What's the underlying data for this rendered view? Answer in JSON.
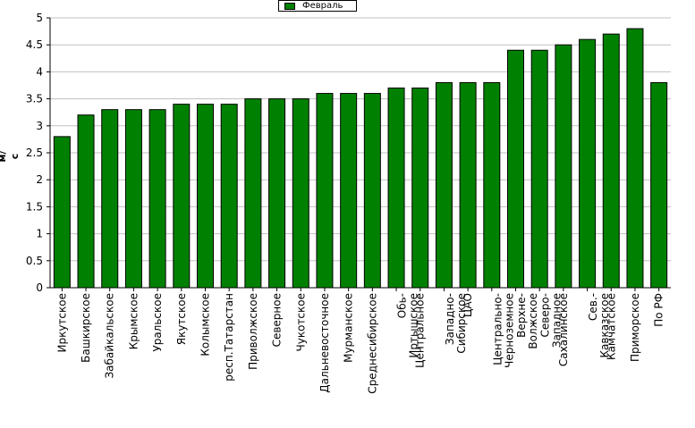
{
  "chart_data": {
    "type": "bar",
    "legend": "Февраль",
    "legend_position": "top-center",
    "ylabel": "м/с",
    "ylim": [
      0,
      5
    ],
    "yticks": [
      "0",
      "0.5",
      "1",
      "1.5",
      "2",
      "2.5",
      "3",
      "3.5",
      "4",
      "4.5",
      "5"
    ],
    "grid": true,
    "colors": {
      "bar": "#008000",
      "grid": "#c0c0c0",
      "plot_bg": "#ffffff"
    },
    "categories": [
      "Иркутское",
      "Башкирское",
      "Забайкальское",
      "Крымское",
      "Уральское",
      "Якутское",
      "Колымское",
      "респ.Татарстан",
      "Приволжское",
      "Северное",
      "Чукотское",
      "Дальневосточное",
      "Мурманское",
      "Среднесибирское",
      "Обь-Иртышское",
      "Центральное",
      "Западно-Сибирское",
      "ЦАО",
      "Центрально-Черноземное",
      "Верхне-Волжское",
      "Северо-Западное",
      "Сахалинское",
      "Сев.-Кавказское",
      "Камчатское",
      "Приморское",
      "По РФ"
    ],
    "category_lines": [
      [
        "Иркутское"
      ],
      [
        "Башкирское"
      ],
      [
        "Забайкальское"
      ],
      [
        "Крымское"
      ],
      [
        "Уральское"
      ],
      [
        "Якутское"
      ],
      [
        "Колымское"
      ],
      [
        "респ.Татарстан"
      ],
      [
        "Приволжское"
      ],
      [
        "Северное"
      ],
      [
        "Чукотское"
      ],
      [
        "Дальневосточное"
      ],
      [
        "Мурманское"
      ],
      [
        "Среднесибирское"
      ],
      [
        "Обь-",
        "Иртышское"
      ],
      [
        "Центральное"
      ],
      [
        "Западно-",
        "Сибирское"
      ],
      [
        "ЦАО"
      ],
      [
        "Центрально-",
        "Черноземное"
      ],
      [
        "Верхне-",
        "Волжское"
      ],
      [
        "Северо-",
        "Западное"
      ],
      [
        "Сахалинское"
      ],
      [
        "Сев.-",
        "Кавказское"
      ],
      [
        "Камчатское"
      ],
      [
        "Приморское"
      ],
      [
        "По РФ"
      ]
    ],
    "values": [
      2.8,
      3.2,
      3.3,
      3.3,
      3.3,
      3.4,
      3.4,
      3.4,
      3.5,
      3.5,
      3.5,
      3.6,
      3.6,
      3.6,
      3.7,
      3.7,
      3.8,
      3.8,
      3.8,
      4.4,
      4.4,
      4.5,
      4.6,
      4.7,
      4.8,
      3.8
    ]
  }
}
